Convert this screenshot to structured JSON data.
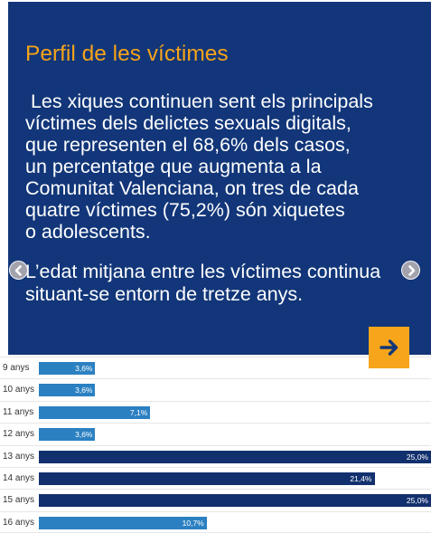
{
  "slide": {
    "title": "Perfil de les víctimes",
    "paragraph1_lines": [
      " Les xiques continuen sent els principals",
      "víctimes dels delictes sexuals digitals,",
      "que representen el 68,6% dels casos,",
      "un percentatge que augmenta a la",
      "Comunitat Valenciana, on tres de cada",
      "quatre víctimes (75,2%) són xiquetes",
      "o adolescents."
    ],
    "paragraph2_lines": [
      "L’edat mitjana entre les víctimes continua",
      "situant-se entorn de tretze anys."
    ]
  },
  "controls": {
    "prev_icon": "chevron-left-icon",
    "next_icon": "chevron-right-icon",
    "advance_icon": "arrow-right-icon"
  },
  "colors": {
    "panel_background": "#123679",
    "title": "#f5a31b",
    "body_text": "#ffffff",
    "advance_button": "#f7a51b",
    "arrow": "#123679",
    "carousel_button": "#a3a3ae"
  },
  "chart_data": {
    "type": "bar",
    "orientation": "horizontal",
    "categories": [
      "9 anys",
      "10 anys",
      "11 anys",
      "12 anys",
      "13 anys",
      "14 anys",
      "15 anys",
      "16 anys"
    ],
    "values": [
      3.6,
      3.6,
      7.1,
      3.6,
      25.0,
      21.4,
      25.0,
      10.7
    ],
    "value_labels": [
      "3,6%",
      "3,6%",
      "7,1%",
      "3,6%",
      "25,0%",
      "21,4%",
      "25,0%",
      "10,7%"
    ],
    "bar_colors": [
      "#2b80c2",
      "#2b80c2",
      "#2b80c2",
      "#2b80c2",
      "#13306e",
      "#13306e",
      "#13306e",
      "#2b80c2"
    ],
    "xlim": [
      0,
      25
    ],
    "grid": true
  }
}
